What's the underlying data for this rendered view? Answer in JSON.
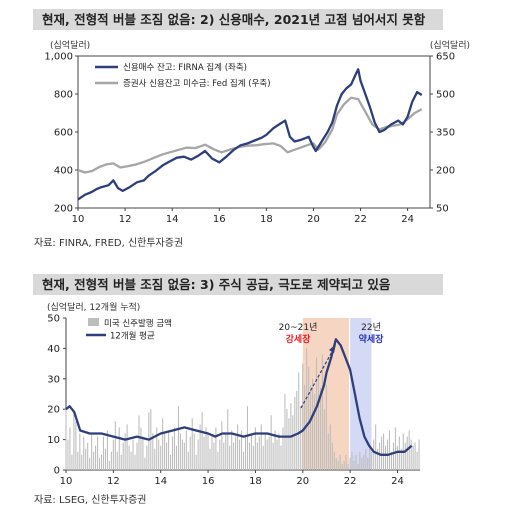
{
  "chart1": {
    "title": "현재, 전형적 버블 조짐 없음: 2) 신용매수, 2021년 고점 넘어서지 못함",
    "left_unit": "(십억달러)",
    "right_unit": "(십억달러)",
    "source": "자료: FINRA, FRED, 신한투자증권"
  },
  "chart2": {
    "title": "현재, 전형적 버블 조짐 없음: 3) 주식 공급, 극도로 제약되고 있음",
    "unit": "(십억달러, 12개월 누적)",
    "annot_2021_years": "20~21년",
    "annot_2021_label": "강세장",
    "annot_2022_years": "22년",
    "annot_2022_label": "약세장",
    "source": "자료: LSEG, 신한투자증권"
  },
  "colors": {
    "dark_series": "#2e3f7c",
    "gray_series": "#a6a6a6",
    "bar": "#bdbdbd",
    "bull_shade": "#f6d6c2",
    "bear_shade": "#d4daf5",
    "bull_text": "#e31e24",
    "bear_text": "#2233bb"
  },
  "chart_data": [
    {
      "type": "line",
      "title": "현재, 전형적 버블 조짐 없음: 2) 신용매수, 2021년 고점 넘어서지 못함",
      "x_ticks": [
        "10",
        "12",
        "14",
        "16",
        "18",
        "20",
        "22",
        "24"
      ],
      "xlim": [
        2010,
        2024.95
      ],
      "ylim_left": [
        200,
        1000
      ],
      "y_ticks_left": [
        200,
        400,
        600,
        800,
        "1,000"
      ],
      "ylim_right": [
        50,
        650
      ],
      "y_ticks_right": [
        50,
        200,
        350,
        500,
        650
      ],
      "legend_placement": "top-left",
      "series": [
        {
          "name": "신용매수 잔고: FIRNA 집계 (좌축)",
          "axis": "left",
          "color": "#2e3f7c",
          "x": [
            2010.0,
            2010.3,
            2010.6,
            2010.8,
            2011.0,
            2011.3,
            2011.5,
            2011.7,
            2011.9,
            2012.2,
            2012.5,
            2012.8,
            2013.0,
            2013.3,
            2013.6,
            2013.9,
            2014.2,
            2014.5,
            2014.8,
            2015.1,
            2015.4,
            2015.7,
            2016.0,
            2016.3,
            2016.6,
            2016.9,
            2017.2,
            2017.5,
            2017.8,
            2018.0,
            2018.3,
            2018.6,
            2018.8,
            2019.0,
            2019.2,
            2019.5,
            2019.8,
            2020.0,
            2020.1,
            2020.3,
            2020.6,
            2020.8,
            2021.0,
            2021.2,
            2021.4,
            2021.6,
            2021.8,
            2021.9,
            2022.0,
            2022.2,
            2022.4,
            2022.6,
            2022.8,
            2023.0,
            2023.3,
            2023.6,
            2023.8,
            2024.0,
            2024.2,
            2024.4,
            2024.6
          ],
          "values": [
            245,
            270,
            285,
            300,
            310,
            320,
            345,
            305,
            290,
            310,
            335,
            345,
            370,
            395,
            425,
            445,
            465,
            470,
            455,
            475,
            500,
            460,
            440,
            470,
            505,
            530,
            540,
            555,
            570,
            585,
            620,
            645,
            660,
            575,
            550,
            560,
            575,
            520,
            500,
            540,
            600,
            650,
            740,
            800,
            830,
            850,
            905,
            930,
            870,
            800,
            730,
            650,
            600,
            610,
            640,
            660,
            640,
            680,
            760,
            810,
            795
          ]
        },
        {
          "name": "증권사 신용잔고 미수금: Fed 집계 (우축)",
          "axis": "right",
          "color": "#a6a6a6",
          "x": [
            2010.0,
            2010.3,
            2010.6,
            2010.9,
            2011.2,
            2011.5,
            2011.8,
            2012.1,
            2012.5,
            2012.9,
            2013.2,
            2013.6,
            2013.9,
            2014.3,
            2014.6,
            2015.0,
            2015.4,
            2015.8,
            2016.1,
            2016.5,
            2016.9,
            2017.2,
            2017.6,
            2017.9,
            2018.3,
            2018.6,
            2018.9,
            2019.2,
            2019.5,
            2019.8,
            2020.0,
            2020.2,
            2020.5,
            2020.8,
            2021.0,
            2021.3,
            2021.6,
            2021.9,
            2022.2,
            2022.5,
            2022.8,
            2023.1,
            2023.4,
            2023.7,
            2024.0,
            2024.3,
            2024.6
          ],
          "values": [
            200,
            190,
            196,
            212,
            222,
            226,
            210,
            215,
            223,
            235,
            247,
            262,
            270,
            280,
            288,
            287,
            300,
            280,
            270,
            282,
            292,
            296,
            298,
            302,
            305,
            295,
            270,
            280,
            290,
            300,
            305,
            280,
            310,
            360,
            420,
            460,
            485,
            480,
            430,
            380,
            360,
            370,
            375,
            380,
            400,
            425,
            440
          ]
        }
      ]
    },
    {
      "type": "bar",
      "title": "현재, 전형적 버블 조짐 없음: 3) 주식 공급, 극도로 제약되고 있음",
      "x_ticks": [
        "10",
        "12",
        "14",
        "16",
        "18",
        "20",
        "22",
        "24"
      ],
      "xlim": [
        2010,
        2024.95
      ],
      "ylim": [
        0,
        50
      ],
      "y_ticks": [
        0,
        10,
        20,
        30,
        40,
        50
      ],
      "legend_placement": "top-left",
      "bar_series": {
        "name": "미국 신주발행 금액",
        "start": 2010.0,
        "step": 0.0833,
        "values": [
          20,
          10,
          14,
          5,
          20,
          16,
          6,
          12,
          5,
          11,
          7,
          9,
          4,
          12,
          6,
          8,
          11,
          4,
          5,
          11,
          7,
          13,
          3,
          6,
          10,
          16,
          6,
          14,
          5,
          9,
          12,
          15,
          8,
          6,
          10,
          5,
          9,
          18,
          14,
          11,
          4,
          8,
          19,
          20,
          12,
          7,
          14,
          10,
          8,
          17,
          12,
          9,
          13,
          5,
          11,
          14,
          8,
          21,
          12,
          10,
          9,
          13,
          6,
          11,
          17,
          12,
          5,
          10,
          15,
          19,
          11,
          14,
          12,
          7,
          11,
          9,
          14,
          6,
          10,
          16,
          9,
          12,
          20,
          8,
          13,
          9,
          11,
          15,
          10,
          13,
          6,
          11,
          21,
          9,
          12,
          8,
          14,
          9,
          11,
          15,
          8,
          12,
          10,
          11,
          18,
          9,
          13,
          10,
          12,
          8,
          14,
          25,
          20,
          17,
          22,
          18,
          24,
          26,
          32,
          21,
          35,
          28,
          40,
          34,
          28,
          30,
          25,
          37,
          31,
          27,
          38,
          20,
          28,
          12,
          15,
          9,
          6,
          4,
          3,
          5,
          2,
          3,
          5,
          2,
          4,
          6,
          3,
          5,
          2,
          6,
          4,
          5,
          7,
          4,
          8,
          6,
          10,
          15,
          7,
          9,
          11,
          12,
          8,
          10,
          13,
          6,
          9,
          14,
          8,
          11,
          7,
          12,
          9,
          11,
          13,
          10,
          8,
          9,
          6,
          10,
          12,
          8,
          15,
          9,
          11,
          10,
          12,
          8
        ]
      },
      "line_series": {
        "name": "12개월 평균",
        "color": "#2e3f7c",
        "x": [
          2010.0,
          2010.15,
          2010.35,
          2010.6,
          2011.0,
          2011.5,
          2012.0,
          2012.5,
          2013.0,
          2013.5,
          2014.0,
          2014.5,
          2015.0,
          2015.5,
          2016.0,
          2016.3,
          2016.6,
          2017.0,
          2017.5,
          2018.0,
          2018.5,
          2019.0,
          2019.5,
          2019.8,
          2020.0,
          2020.3,
          2020.6,
          2020.9,
          2021.0,
          2021.2,
          2021.4,
          2021.6,
          2021.8,
          2022.0,
          2022.2,
          2022.4,
          2022.6,
          2022.8,
          2023.0,
          2023.3,
          2023.6,
          2024.0,
          2024.3,
          2024.6
        ],
        "values": [
          20,
          21,
          19,
          13,
          12,
          12,
          11,
          10,
          11,
          10,
          12,
          13,
          14,
          13,
          12,
          11,
          12,
          12,
          11,
          12,
          12,
          11,
          11,
          12,
          13,
          16,
          21,
          28,
          32,
          37,
          43,
          41,
          37,
          33,
          25,
          17,
          11,
          8,
          6,
          5,
          5,
          6,
          6,
          8
        ]
      },
      "shaded_periods": [
        {
          "label": "강세장",
          "years": "20~21년",
          "x_range": [
            2020.0,
            2021.95
          ]
        },
        {
          "label": "약세장",
          "years": "22년",
          "x_range": [
            2022.0,
            2022.9
          ]
        }
      ]
    }
  ]
}
